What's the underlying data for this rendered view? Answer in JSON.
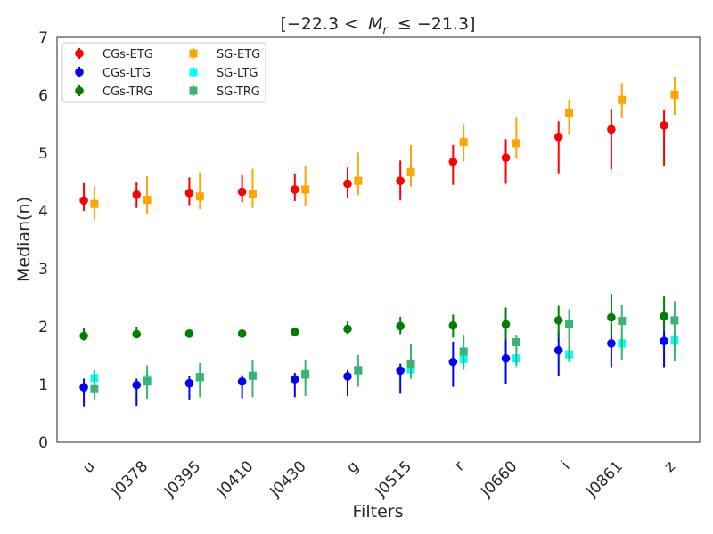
{
  "chart_data": {
    "type": "scatter",
    "title_prefix": "[−22.3 <",
    "title_var": "M",
    "title_sub": "r",
    "title_suffix": "≤ −21.3]",
    "xlabel": "Filters",
    "ylabel": "Median(n)",
    "categories": [
      "u",
      "J0378",
      "J0395",
      "J0410",
      "J0430",
      "g",
      "J0515",
      "r",
      "J0660",
      "i",
      "J0861",
      "z"
    ],
    "ylim": [
      0,
      7
    ],
    "yticks": [
      0,
      1,
      2,
      3,
      4,
      5,
      6,
      7
    ],
    "grid": false,
    "legend_position": "upper left",
    "series": [
      {
        "name": "CGs-ETG",
        "marker": "circle",
        "color": "#ff0000",
        "offset": -0.1,
        "values": [
          4.18,
          4.28,
          4.31,
          4.33,
          4.37,
          4.47,
          4.52,
          4.85,
          4.92,
          5.28,
          5.41,
          5.48
        ],
        "lower": [
          4.0,
          4.05,
          4.1,
          4.15,
          4.17,
          4.22,
          4.18,
          4.45,
          4.47,
          4.65,
          4.72,
          4.78
        ],
        "upper": [
          4.48,
          4.5,
          4.58,
          4.62,
          4.65,
          4.75,
          4.87,
          5.14,
          5.24,
          5.55,
          5.76,
          5.74
        ]
      },
      {
        "name": "CGs-LTG",
        "marker": "circle",
        "color": "#0000ff",
        "offset": -0.1,
        "values": [
          0.95,
          0.99,
          1.02,
          1.05,
          1.09,
          1.14,
          1.24,
          1.39,
          1.45,
          1.59,
          1.71,
          1.75
        ],
        "lower": [
          0.62,
          0.63,
          0.74,
          0.76,
          0.78,
          0.8,
          0.84,
          0.96,
          1.0,
          1.15,
          1.3,
          1.3
        ],
        "upper": [
          1.1,
          1.1,
          1.14,
          1.16,
          1.2,
          1.25,
          1.36,
          1.74,
          1.8,
          1.92,
          2.04,
          2.1
        ]
      },
      {
        "name": "CGs-TRG",
        "marker": "circle",
        "color": "#008000",
        "offset": -0.1,
        "values": [
          1.84,
          1.87,
          1.88,
          1.88,
          1.91,
          1.96,
          2.01,
          2.02,
          2.04,
          2.11,
          2.16,
          2.18
        ],
        "lower": [
          1.76,
          1.8,
          1.84,
          1.82,
          1.83,
          1.87,
          1.87,
          1.81,
          1.77,
          1.8,
          1.85,
          1.92
        ],
        "upper": [
          1.98,
          2.0,
          1.92,
          1.93,
          1.96,
          2.09,
          2.17,
          2.21,
          2.33,
          2.36,
          2.57,
          2.52
        ]
      },
      {
        "name": "SG-ETG",
        "marker": "square",
        "color": "#ffa500",
        "offset": 0.1,
        "values": [
          4.12,
          4.19,
          4.25,
          4.3,
          4.37,
          4.52,
          4.67,
          5.19,
          5.17,
          5.7,
          5.92,
          6.01
        ],
        "lower": [
          3.84,
          3.94,
          4.03,
          4.05,
          4.08,
          4.27,
          4.42,
          4.85,
          4.9,
          5.32,
          5.6,
          5.66
        ],
        "upper": [
          4.43,
          4.6,
          4.67,
          4.73,
          4.77,
          5.01,
          5.14,
          5.5,
          5.61,
          5.93,
          6.21,
          6.31
        ]
      },
      {
        "name": "SG-LTG",
        "marker": "square",
        "color": "#00ffff",
        "offset": 0.1,
        "values": [
          1.11,
          1.09,
          1.12,
          1.15,
          1.18,
          1.24,
          1.26,
          1.44,
          1.45,
          1.52,
          1.71,
          1.76
        ],
        "lower": [
          0.9,
          0.95,
          0.98,
          1.0,
          1.02,
          1.08,
          1.1,
          1.25,
          1.3,
          1.38,
          1.55,
          1.6
        ],
        "upper": [
          1.25,
          1.22,
          1.24,
          1.28,
          1.3,
          1.36,
          1.4,
          1.6,
          1.62,
          1.68,
          1.86,
          1.92
        ]
      },
      {
        "name": "SG-TRG",
        "marker": "square",
        "color": "#3cb371",
        "offset": 0.1,
        "values": [
          0.92,
          1.05,
          1.13,
          1.15,
          1.17,
          1.25,
          1.36,
          1.57,
          1.73,
          2.04,
          2.1,
          2.11
        ],
        "lower": [
          0.74,
          0.75,
          0.78,
          0.78,
          0.8,
          0.96,
          1.1,
          1.26,
          1.34,
          1.4,
          1.42,
          1.4
        ],
        "upper": [
          1.24,
          1.33,
          1.37,
          1.42,
          1.42,
          1.51,
          1.7,
          1.86,
          1.86,
          2.3,
          2.37,
          2.44
        ]
      }
    ]
  }
}
